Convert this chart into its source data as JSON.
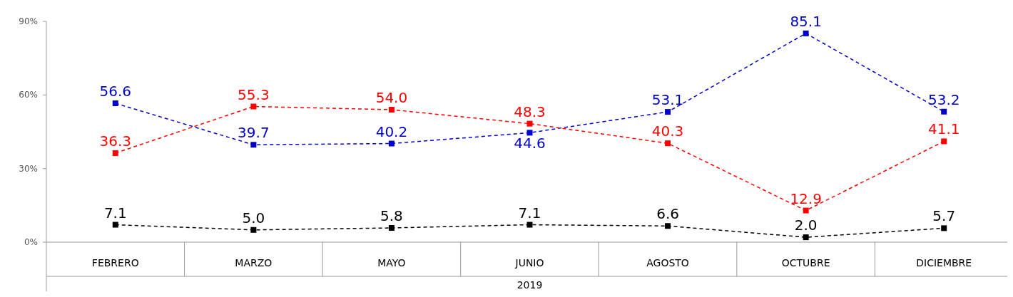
{
  "chart_data": {
    "type": "line",
    "xlabel": "2019",
    "categories": [
      "FEBRERO",
      "MARZO",
      "MAYO",
      "JUNIO",
      "AGOSTO",
      "OCTUBRE",
      "DICIEMBRE"
    ],
    "series": [
      {
        "color": "#0000cc",
        "values": [
          56.6,
          39.7,
          40.2,
          44.6,
          53.1,
          85.1,
          53.2
        ],
        "value_labels": [
          "56.6",
          "39.7",
          "40.2",
          "44.6",
          "53.1",
          "85.1",
          "53.2"
        ]
      },
      {
        "color": "#ff0000",
        "values": [
          36.3,
          55.3,
          54.0,
          48.3,
          40.3,
          12.9,
          41.1
        ],
        "value_labels": [
          "36.3",
          "55.3",
          "54.0",
          "48.3",
          "40.3",
          "12.9",
          "41.1"
        ]
      },
      {
        "color": "#000000",
        "values": [
          7.1,
          5.0,
          5.8,
          7.1,
          6.6,
          2.0,
          5.7
        ],
        "value_labels": [
          "7.1",
          "5.0",
          "5.8",
          "7.1",
          "6.6",
          "2.0",
          "5.7"
        ]
      }
    ],
    "ylim": [
      0,
      90
    ],
    "yticks": [
      {
        "value": 0,
        "label": "0%"
      },
      {
        "value": 30,
        "label": "30%"
      },
      {
        "value": 60,
        "label": "60%"
      },
      {
        "value": 90,
        "label": "90%"
      }
    ],
    "marker": "square",
    "line_style": "dashed",
    "grid": false
  }
}
